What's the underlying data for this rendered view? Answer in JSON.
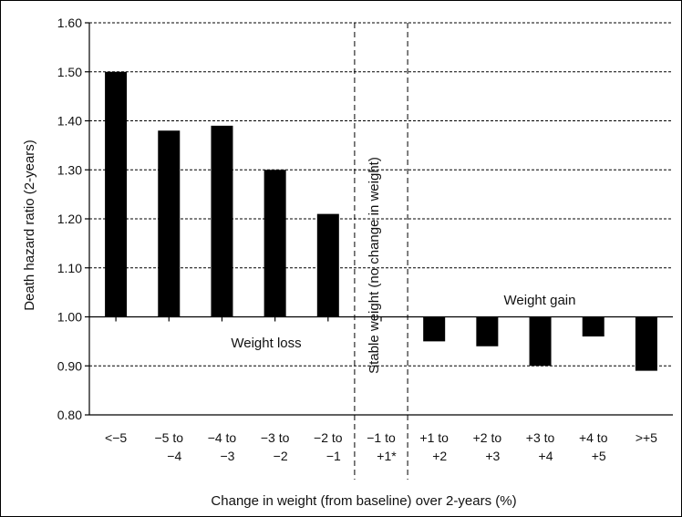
{
  "chart_data": {
    "type": "bar",
    "xlabel": "Change in weight (from baseline) over 2-years (%)",
    "ylabel": "Death hazard ratio (2-years)",
    "ylim": [
      0.8,
      1.6
    ],
    "baseline": 1.0,
    "yticks": [
      "0.80",
      "0.90",
      "1.00",
      "1.10",
      "1.20",
      "1.30",
      "1.40",
      "1.50",
      "1.60"
    ],
    "categories": [
      [
        "<−5"
      ],
      [
        "−5 to",
        "−4"
      ],
      [
        "−4 to",
        "−3"
      ],
      [
        "−3 to",
        "−2"
      ],
      [
        "−2 to",
        "−1"
      ],
      [
        "−1 to",
        "+1*"
      ],
      [
        "+1 to",
        "+2"
      ],
      [
        "+2 to",
        "+3"
      ],
      [
        "+3 to",
        "+4"
      ],
      [
        "+4 to",
        "+5"
      ],
      [
        ">+5"
      ]
    ],
    "values": [
      1.5,
      1.38,
      1.39,
      1.3,
      1.21,
      null,
      0.95,
      0.94,
      0.9,
      0.96,
      0.89
    ],
    "annotations": {
      "weight_loss": "Weight loss",
      "weight_gain": "Weight gain",
      "stable": "Stable weight  (no change in weight)"
    },
    "grid": true,
    "bar_color": "#000000"
  }
}
